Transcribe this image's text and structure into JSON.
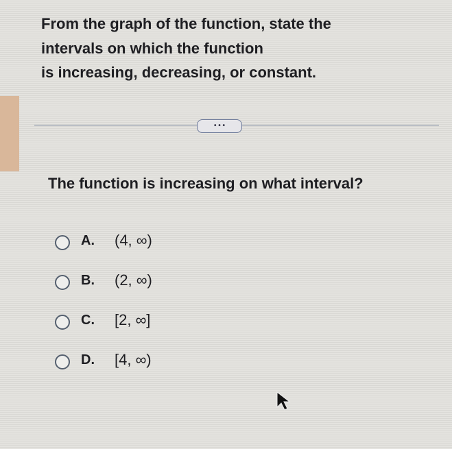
{
  "header": {
    "lines": [
      "From the graph of the function, state the",
      "intervals on which the function",
      "is increasing, decreasing, or constant."
    ]
  },
  "more_button": "• • •",
  "question": "The function is increasing on what interval?",
  "options": [
    {
      "letter": "A.",
      "text": "(4, ∞)"
    },
    {
      "letter": "B.",
      "text": "(2, ∞)"
    },
    {
      "letter": "C.",
      "text": "[2, ∞]"
    },
    {
      "letter": "D.",
      "text": "[4, ∞)"
    }
  ]
}
